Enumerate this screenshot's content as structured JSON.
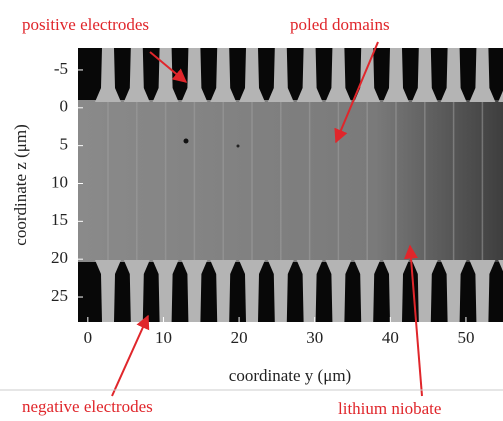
{
  "image": {
    "annotations": {
      "positive": "positive electrodes",
      "domains": "poled domains",
      "negative": "negative electrodes",
      "substrate": "lithium niobate"
    },
    "x_axis": {
      "label": "coordinate y (μm)",
      "lim": [
        -1.3,
        54.9
      ],
      "ticks": [
        0,
        10,
        20,
        30,
        40,
        50
      ]
    },
    "y_axis": {
      "label": "coordinate z (μm)",
      "lim": [
        -7.9,
        28.3
      ],
      "ticks": [
        -5,
        0,
        5,
        10,
        15,
        20,
        25
      ]
    }
  }
}
